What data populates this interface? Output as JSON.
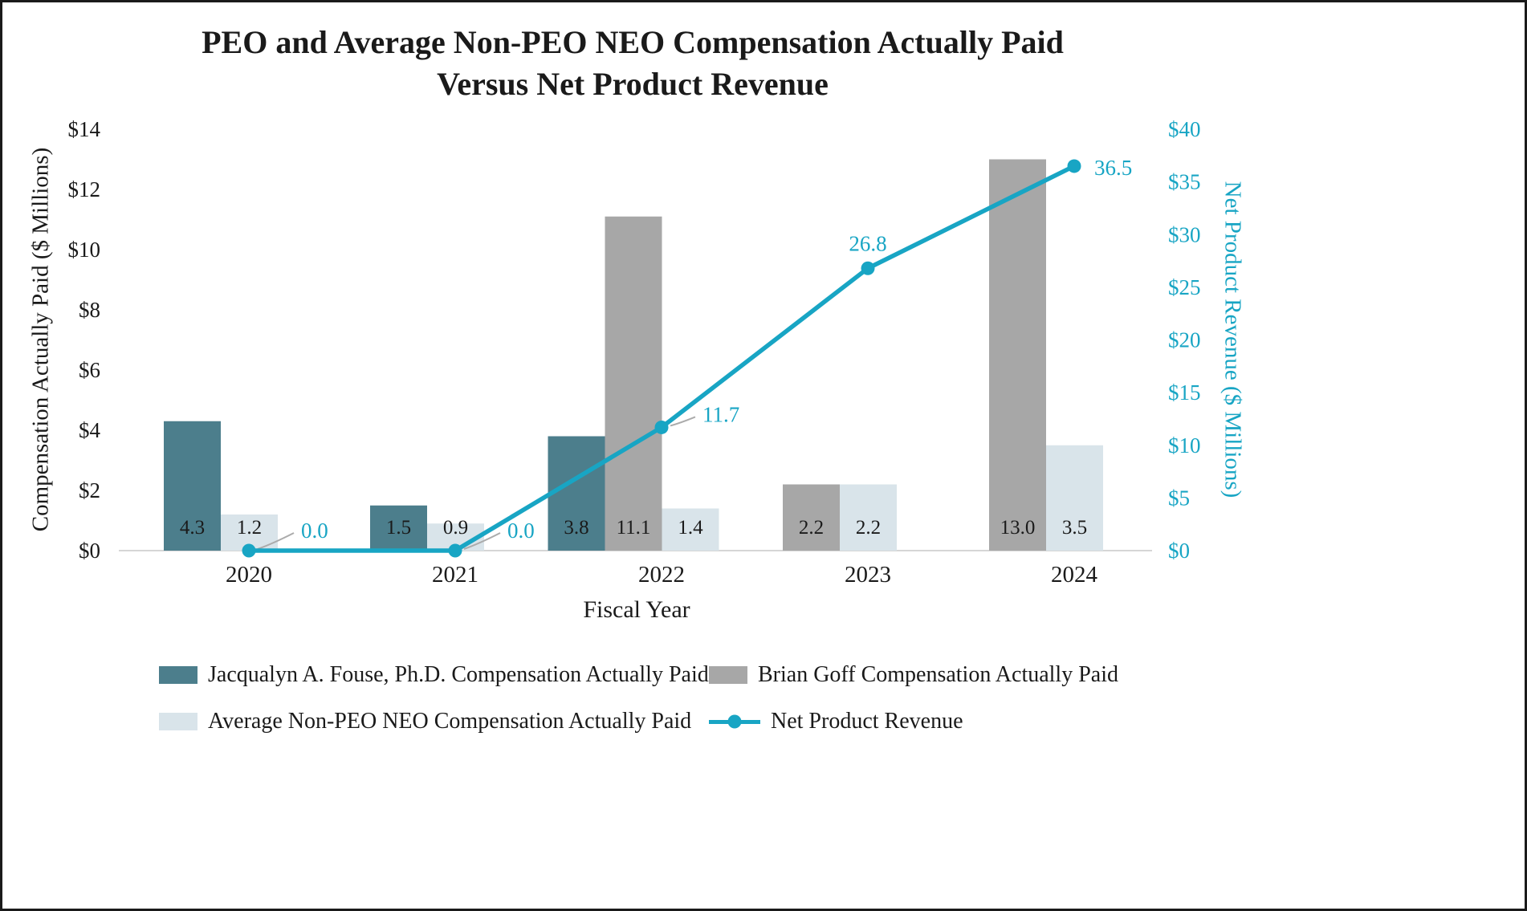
{
  "chart_data": {
    "type": "bar-line-combo",
    "title_line1": "PEO and Average Non-PEO NEO Compensation Actually Paid",
    "title_line2": "Versus Net Product Revenue",
    "xlabel": "Fiscal Year",
    "ylabel_left": "Compensation Actually Paid ($ Millions)",
    "ylabel_right": "Net Product Revenue ($ Millions)",
    "categories": [
      "2020",
      "2021",
      "2022",
      "2023",
      "2024"
    ],
    "left_axis": {
      "min": 0,
      "max": 14,
      "ticks": [
        "$0",
        "$2",
        "$4",
        "$6",
        "$8",
        "$10",
        "$12",
        "$14"
      ]
    },
    "right_axis": {
      "min": 0,
      "max": 40,
      "ticks": [
        "$0",
        "$5",
        "$10",
        "$15",
        "$20",
        "$25",
        "$30",
        "$35",
        "$40"
      ]
    },
    "bar_series": [
      {
        "name": "Jacqualyn A. Fouse, Ph.D. Compensation Actually Paid",
        "color": "#4C7E8C",
        "values": [
          4.3,
          1.5,
          3.8,
          null,
          null
        ]
      },
      {
        "name": "Brian Goff Compensation Actually Paid",
        "color": "#A7A7A7",
        "values": [
          null,
          null,
          11.1,
          2.2,
          13.0
        ]
      },
      {
        "name": "Average Non-PEO NEO Compensation Actually Paid",
        "color": "#D9E4EA",
        "values": [
          1.2,
          0.9,
          1.4,
          2.2,
          3.5
        ]
      }
    ],
    "line_series": {
      "name": "Net Product Revenue",
      "color": "#18A5C4",
      "values": [
        0.0,
        0.0,
        11.7,
        26.8,
        36.5
      ]
    },
    "colors": {
      "text": "#1a1a1a",
      "axis_line": "#d6d6d6",
      "leader_line": "#ababab"
    }
  }
}
